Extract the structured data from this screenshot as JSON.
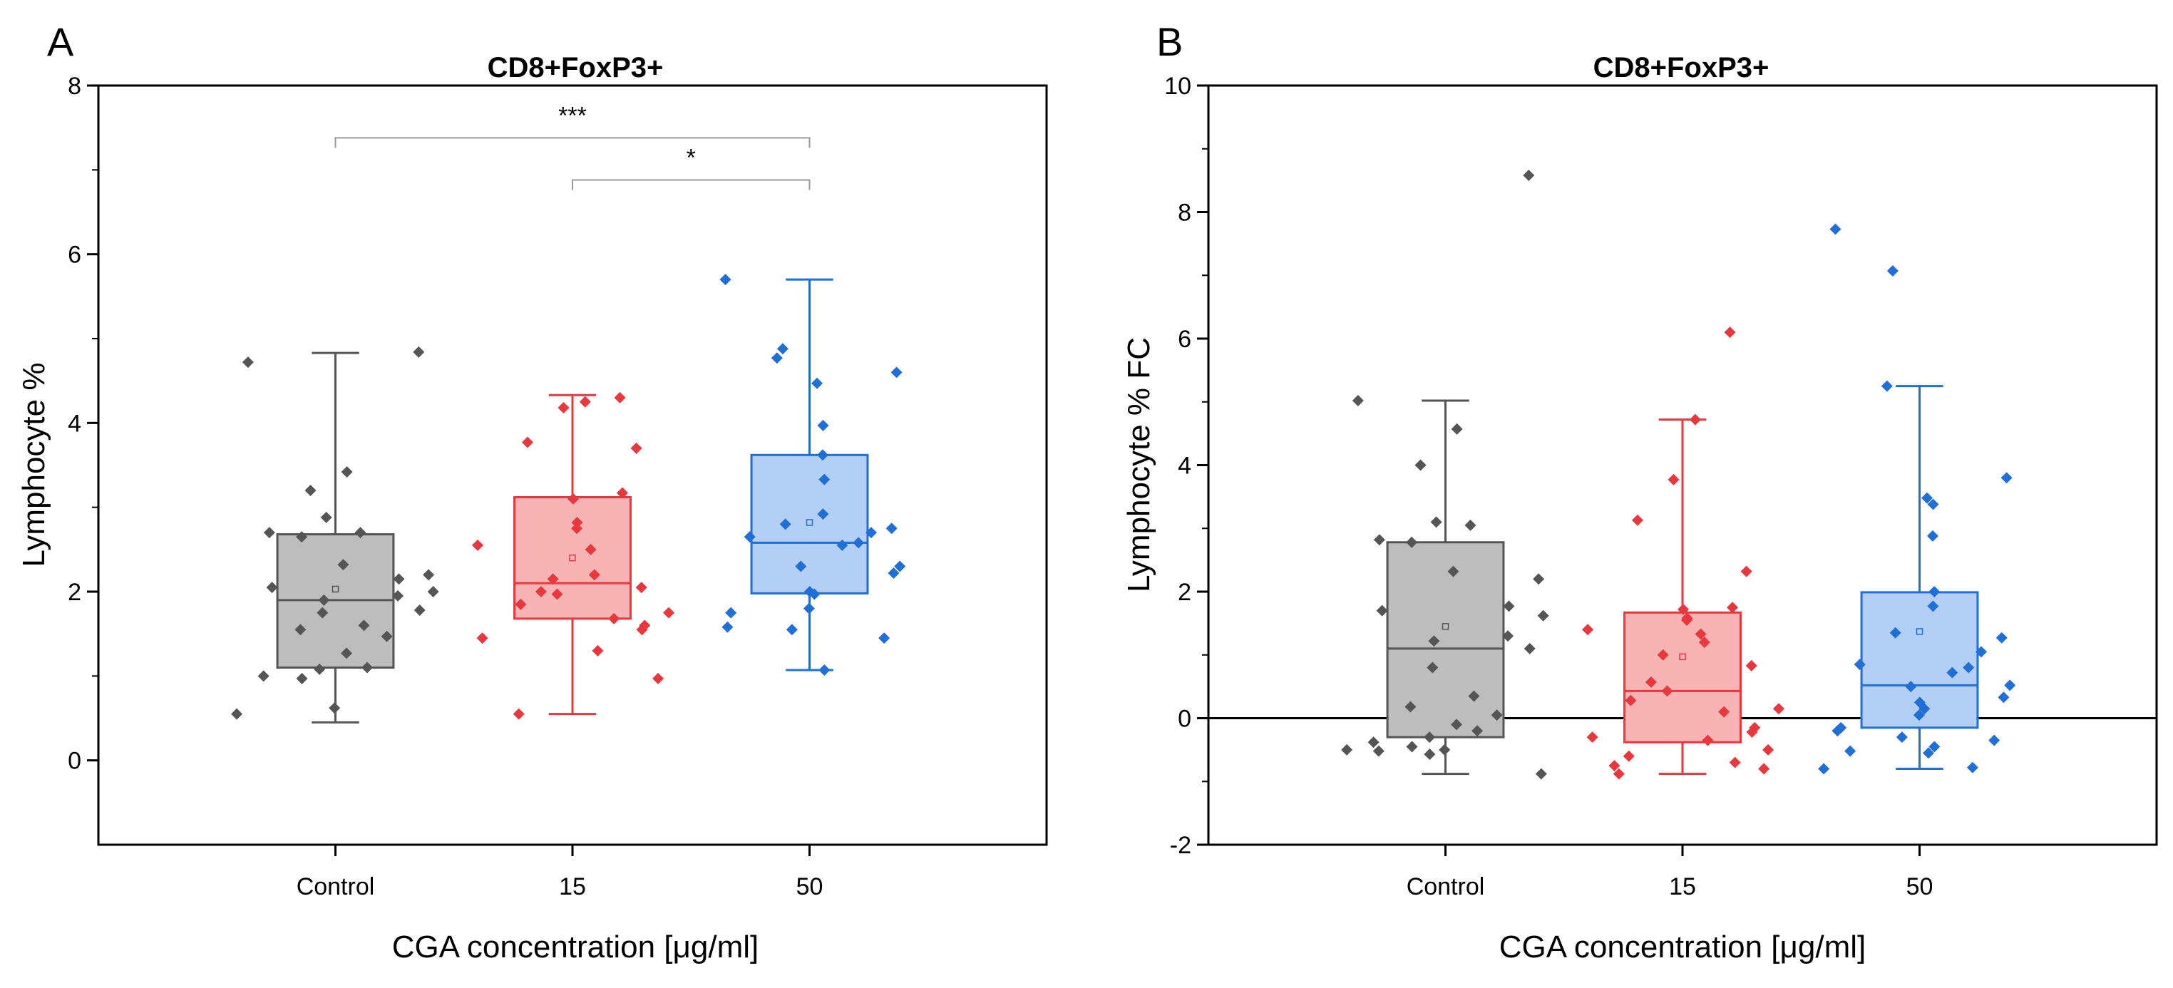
{
  "chart_data": [
    {
      "panel": "A",
      "type": "box",
      "title": "CD8+FoxP3+",
      "xlabel": "CGA concentration [μg/ml]",
      "ylabel": "Lymphocyte %",
      "ylim": [
        -1,
        8
      ],
      "yticks": [
        0,
        2,
        4,
        6,
        8
      ],
      "categories": [
        "Control",
        "15",
        "50"
      ],
      "colors": {
        "Control": {
          "fill": "#bdbdbd",
          "stroke": "#555555",
          "point": "#555555"
        },
        "15": {
          "fill": "#f8b4b4",
          "stroke": "#e8373d",
          "point": "#e8373d"
        },
        "50": {
          "fill": "#b3cff5",
          "stroke": "#1f6fd6",
          "point": "#1f6fd6"
        }
      },
      "boxes": [
        {
          "group": "Control",
          "whisker_low": 0.45,
          "q1": 1.1,
          "median": 1.9,
          "mean": 2.03,
          "q3": 2.68,
          "whisker_high": 4.83
        },
        {
          "group": "15",
          "whisker_low": 0.55,
          "q1": 1.68,
          "median": 2.1,
          "mean": 2.4,
          "q3": 3.12,
          "whisker_high": 4.33
        },
        {
          "group": "50",
          "whisker_low": 1.07,
          "q1": 1.98,
          "median": 2.58,
          "mean": 2.82,
          "q3": 3.62,
          "whisker_high": 5.7
        }
      ],
      "points": {
        "Control": [
          4.84,
          4.72,
          3.42,
          3.2,
          2.88,
          2.7,
          2.7,
          2.65,
          2.32,
          2.2,
          2.15,
          2.05,
          2.0,
          1.95,
          1.9,
          1.78,
          1.75,
          1.6,
          1.55,
          1.47,
          1.27,
          1.1,
          1.08,
          1.0,
          0.97,
          0.62,
          0.55
        ],
        "15": [
          4.3,
          4.25,
          4.18,
          3.77,
          3.7,
          3.17,
          3.1,
          2.82,
          2.75,
          2.55,
          2.5,
          2.2,
          2.15,
          2.05,
          2.0,
          1.97,
          1.85,
          1.75,
          1.68,
          1.6,
          1.55,
          1.45,
          1.3,
          0.97,
          0.55
        ],
        "50": [
          5.7,
          4.88,
          4.77,
          4.6,
          4.47,
          3.97,
          3.62,
          3.33,
          2.92,
          2.8,
          2.75,
          2.7,
          2.65,
          2.58,
          2.55,
          2.3,
          2.3,
          2.22,
          2.0,
          1.97,
          1.8,
          1.75,
          1.58,
          1.55,
          1.45,
          1.07
        ]
      },
      "significance": [
        {
          "from": "Control",
          "to": "50",
          "label": "***",
          "y": 7.38
        },
        {
          "from": "15",
          "to": "50",
          "label": "*",
          "y": 6.88
        }
      ]
    },
    {
      "panel": "B",
      "type": "box",
      "title": "CD8+FoxP3+",
      "xlabel": "CGA concentration [μg/ml]",
      "ylabel": "Lymphocyte % FC",
      "ylim": [
        -2,
        10
      ],
      "yticks": [
        -2,
        0,
        2,
        4,
        6,
        8,
        10
      ],
      "reference_line": 0,
      "categories": [
        "Control",
        "15",
        "50"
      ],
      "colors": {
        "Control": {
          "fill": "#bdbdbd",
          "stroke": "#555555",
          "point": "#555555"
        },
        "15": {
          "fill": "#f8b4b4",
          "stroke": "#e8373d",
          "point": "#e8373d"
        },
        "50": {
          "fill": "#b3cff5",
          "stroke": "#1f6fd6",
          "point": "#1f6fd6"
        }
      },
      "boxes": [
        {
          "group": "Control",
          "whisker_low": -0.88,
          "q1": -0.3,
          "median": 1.1,
          "mean": 1.45,
          "q3": 2.78,
          "whisker_high": 5.02
        },
        {
          "group": "15",
          "whisker_low": -0.88,
          "q1": -0.38,
          "median": 0.43,
          "mean": 0.97,
          "q3": 1.67,
          "whisker_high": 4.72
        },
        {
          "group": "50",
          "whisker_low": -0.8,
          "q1": -0.15,
          "median": 0.52,
          "mean": 1.37,
          "q3": 1.99,
          "whisker_high": 5.25
        }
      ],
      "points": {
        "Control": [
          8.58,
          5.02,
          4.57,
          4.0,
          3.1,
          3.05,
          2.82,
          2.78,
          2.32,
          2.2,
          1.77,
          1.7,
          1.62,
          1.3,
          1.22,
          1.1,
          0.8,
          0.35,
          0.18,
          0.05,
          -0.1,
          -0.2,
          -0.3,
          -0.38,
          -0.45,
          -0.5,
          -0.5,
          -0.52,
          -0.57,
          -0.88
        ],
        "15": [
          6.1,
          4.72,
          3.77,
          3.13,
          2.32,
          1.75,
          1.72,
          1.58,
          1.55,
          1.4,
          1.33,
          1.2,
          1.0,
          0.83,
          0.57,
          0.43,
          0.28,
          0.15,
          0.1,
          -0.15,
          -0.22,
          -0.3,
          -0.35,
          -0.5,
          -0.6,
          -0.7,
          -0.75,
          -0.8,
          -0.88
        ],
        "50": [
          7.73,
          7.07,
          5.25,
          3.8,
          3.48,
          3.38,
          2.88,
          2.0,
          1.77,
          1.35,
          1.27,
          1.05,
          0.85,
          0.8,
          0.72,
          0.52,
          0.5,
          0.33,
          0.25,
          0.15,
          0.05,
          -0.15,
          -0.2,
          -0.3,
          -0.35,
          -0.45,
          -0.52,
          -0.55,
          -0.78,
          -0.8
        ]
      }
    }
  ]
}
